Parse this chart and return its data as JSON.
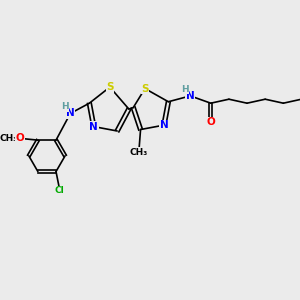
{
  "bg_color": "#ebebeb",
  "atom_colors": {
    "S": "#cccc00",
    "N": "#0000ff",
    "O": "#ff0000",
    "C": "#000000",
    "H": "#5f9ea0",
    "Cl": "#00aa00"
  },
  "bond_color": "#000000"
}
